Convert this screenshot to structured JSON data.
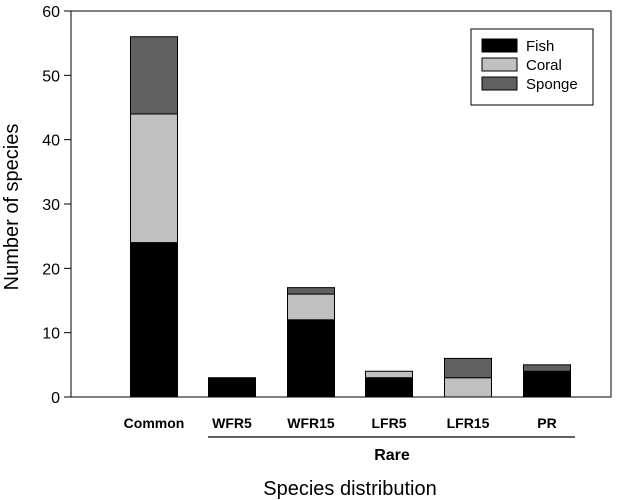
{
  "chart_data": {
    "type": "bar",
    "stacked": true,
    "categories": [
      "Common",
      "WFR5",
      "WFR15",
      "LFR5",
      "LFR15",
      "PR"
    ],
    "series": [
      {
        "name": "Fish",
        "color": "#000000",
        "values": [
          24,
          3,
          12,
          3,
          0,
          4
        ]
      },
      {
        "name": "Coral",
        "color": "#c0c0c0",
        "values": [
          20,
          0,
          4,
          1,
          3,
          0
        ]
      },
      {
        "name": "Sponge",
        "color": "#606060",
        "values": [
          12,
          0,
          1,
          0,
          3,
          1
        ]
      }
    ],
    "xlabel": "Species distribution",
    "ylabel": "Number of species",
    "ylim": [
      0,
      60
    ],
    "yticks": [
      0,
      10,
      20,
      30,
      40,
      50,
      60
    ],
    "group_label": {
      "text": "Rare",
      "categories": [
        "WFR5",
        "WFR15",
        "LFR5",
        "LFR15",
        "PR"
      ]
    },
    "legend_position": "top-right",
    "grid": false
  }
}
